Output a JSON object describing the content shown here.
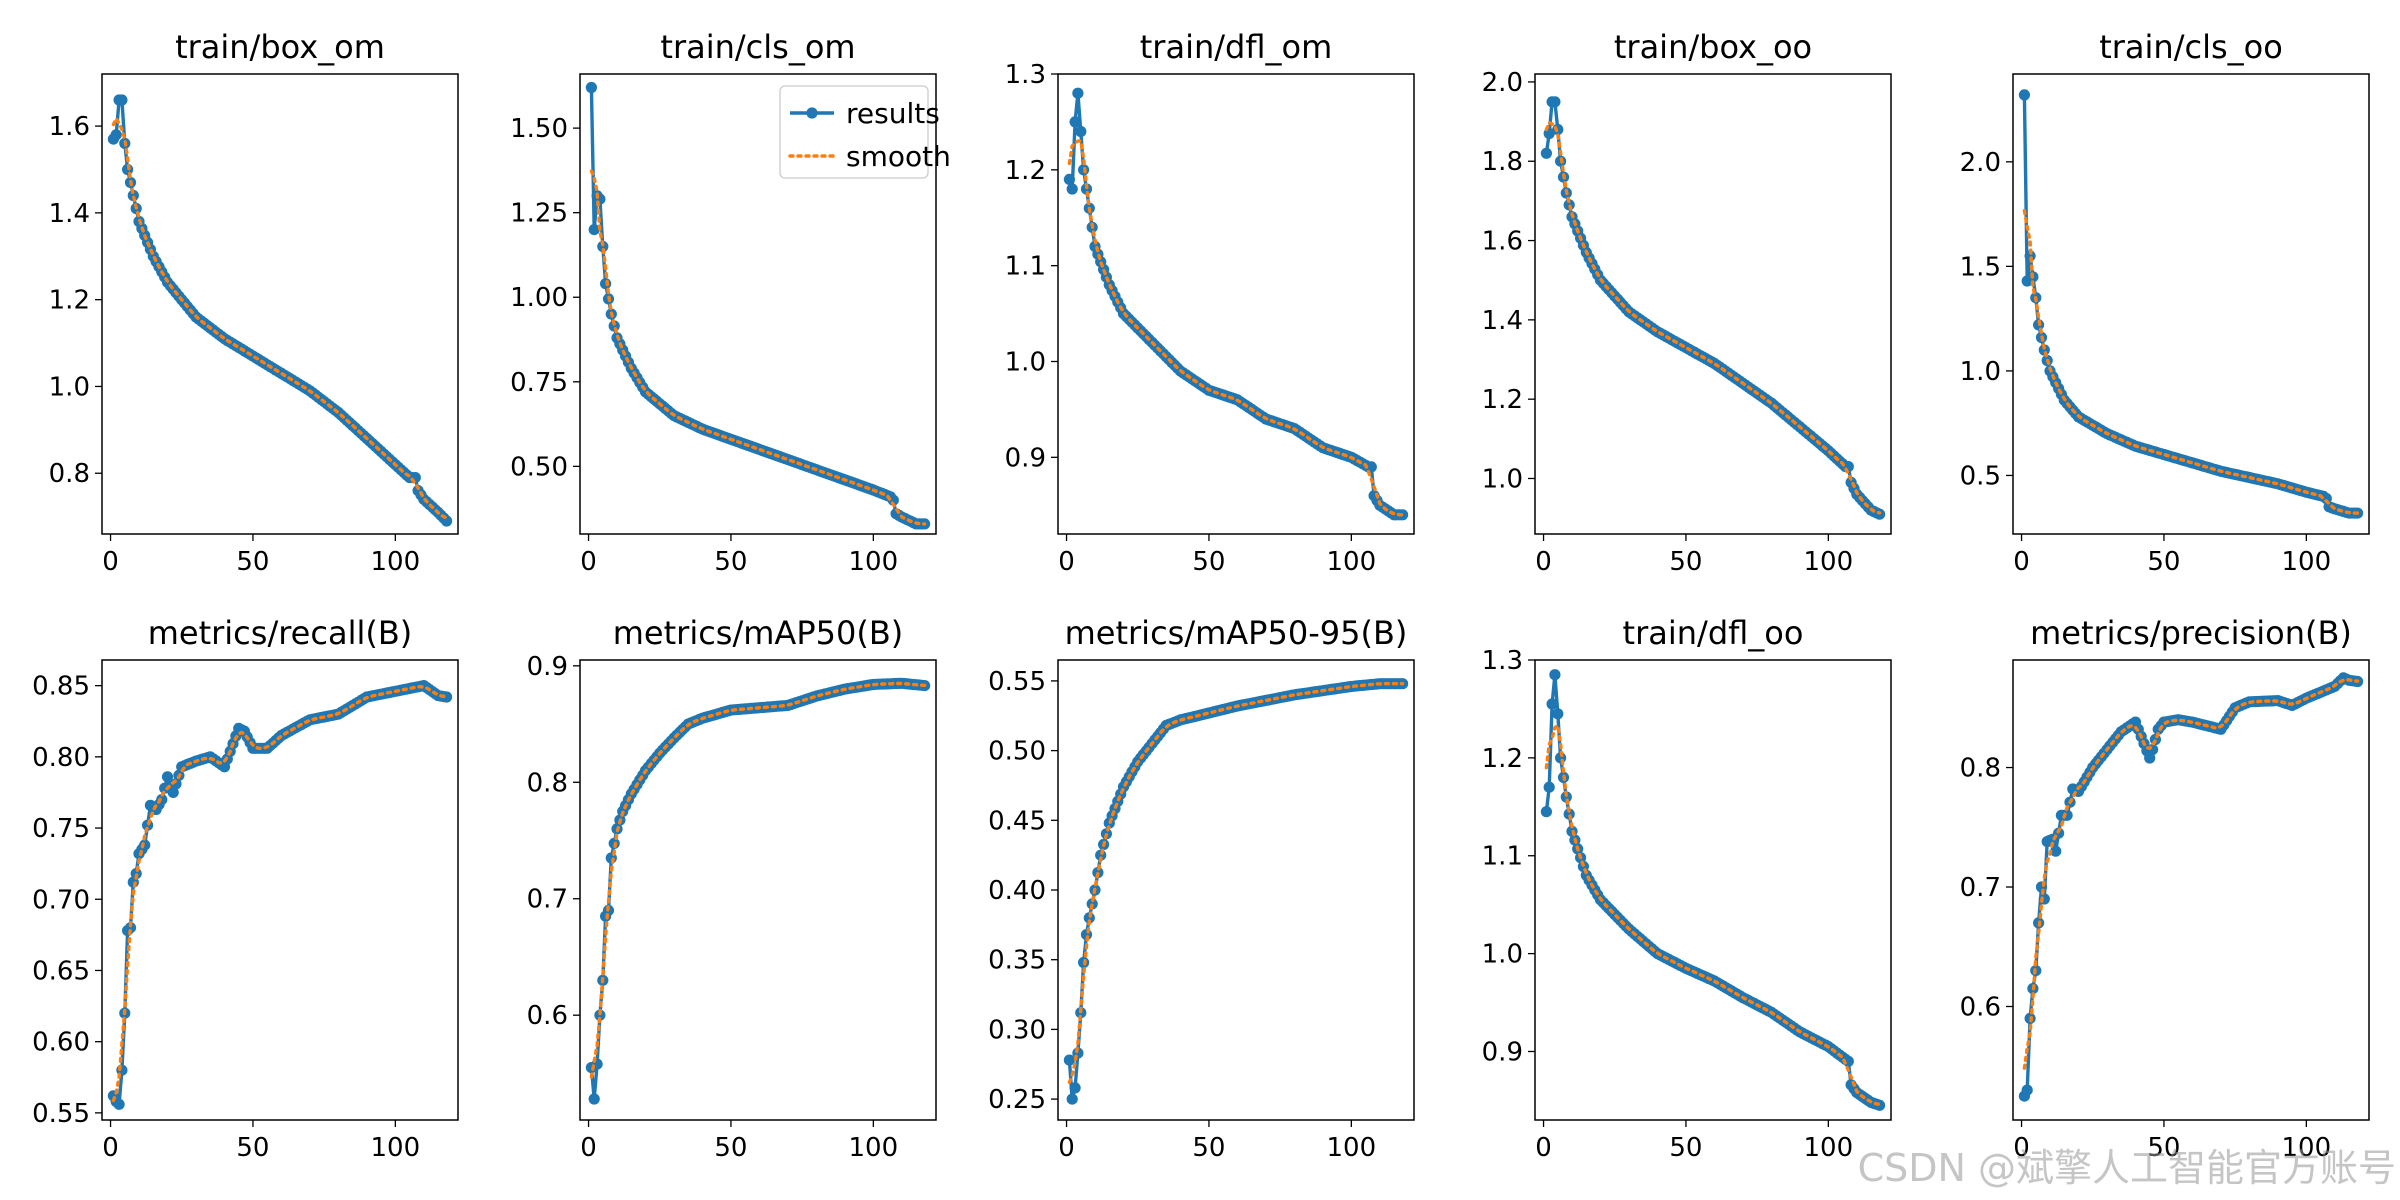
{
  "colors": {
    "results": "#1f77b4",
    "smooth": "#ff7f0e"
  },
  "legend": {
    "location": "top-right of panel 2",
    "results_label": "results",
    "smooth_label": "smooth"
  },
  "watermark": "CSDN @斌擎人工智能官方账号",
  "chart_data": [
    {
      "type": "line",
      "title": "train/box_om",
      "xlim": [
        -3,
        122
      ],
      "ylim": [
        0.66,
        1.72
      ],
      "xticks": [
        "0",
        "50",
        "100"
      ],
      "yticks": [
        "0.8",
        "1.0",
        "1.2",
        "1.4",
        "1.6"
      ],
      "key_points": [
        [
          1,
          1.57
        ],
        [
          2,
          1.58
        ],
        [
          3,
          1.66
        ],
        [
          4,
          1.66
        ],
        [
          5,
          1.56
        ],
        [
          6,
          1.5
        ],
        [
          8,
          1.44
        ],
        [
          10,
          1.38
        ],
        [
          15,
          1.3
        ],
        [
          20,
          1.24
        ],
        [
          30,
          1.16
        ],
        [
          40,
          1.11
        ],
        [
          50,
          1.07
        ],
        [
          60,
          1.03
        ],
        [
          70,
          0.99
        ],
        [
          80,
          0.94
        ],
        [
          90,
          0.88
        ],
        [
          100,
          0.82
        ],
        [
          105,
          0.79
        ],
        [
          107,
          0.79
        ],
        [
          108,
          0.76
        ],
        [
          110,
          0.74
        ],
        [
          115,
          0.71
        ],
        [
          118,
          0.69
        ]
      ],
      "series": [
        {
          "name": "results"
        },
        {
          "name": "smooth"
        }
      ]
    },
    {
      "type": "line",
      "title": "train/cls_om",
      "xlim": [
        -3,
        122
      ],
      "ylim": [
        0.3,
        1.66
      ],
      "xticks": [
        "0",
        "50",
        "100"
      ],
      "yticks": [
        "0.50",
        "0.75",
        "1.00",
        "1.25",
        "1.50"
      ],
      "key_points": [
        [
          1,
          1.62
        ],
        [
          2,
          1.2
        ],
        [
          3,
          1.3
        ],
        [
          4,
          1.29
        ],
        [
          5,
          1.15
        ],
        [
          6,
          1.04
        ],
        [
          8,
          0.95
        ],
        [
          10,
          0.88
        ],
        [
          15,
          0.79
        ],
        [
          20,
          0.72
        ],
        [
          30,
          0.65
        ],
        [
          40,
          0.61
        ],
        [
          50,
          0.58
        ],
        [
          60,
          0.55
        ],
        [
          70,
          0.52
        ],
        [
          80,
          0.49
        ],
        [
          90,
          0.46
        ],
        [
          100,
          0.43
        ],
        [
          106,
          0.41
        ],
        [
          107,
          0.4
        ],
        [
          108,
          0.36
        ],
        [
          110,
          0.35
        ],
        [
          115,
          0.33
        ],
        [
          118,
          0.33
        ]
      ],
      "series": [
        {
          "name": "results"
        },
        {
          "name": "smooth"
        }
      ]
    },
    {
      "type": "line",
      "title": "train/dfl_om",
      "xlim": [
        -3,
        122
      ],
      "ylim": [
        0.82,
        1.3
      ],
      "xticks": [
        "0",
        "50",
        "100"
      ],
      "yticks": [
        "0.9",
        "1.0",
        "1.1",
        "1.2",
        "1.3"
      ],
      "key_points": [
        [
          1,
          1.19
        ],
        [
          2,
          1.18
        ],
        [
          3,
          1.25
        ],
        [
          4,
          1.28
        ],
        [
          5,
          1.24
        ],
        [
          6,
          1.2
        ],
        [
          8,
          1.16
        ],
        [
          10,
          1.12
        ],
        [
          15,
          1.08
        ],
        [
          20,
          1.05
        ],
        [
          30,
          1.02
        ],
        [
          40,
          0.99
        ],
        [
          50,
          0.97
        ],
        [
          60,
          0.96
        ],
        [
          70,
          0.94
        ],
        [
          80,
          0.93
        ],
        [
          90,
          0.91
        ],
        [
          100,
          0.9
        ],
        [
          106,
          0.89
        ],
        [
          107,
          0.89
        ],
        [
          108,
          0.86
        ],
        [
          110,
          0.85
        ],
        [
          115,
          0.84
        ],
        [
          118,
          0.84
        ]
      ],
      "series": [
        {
          "name": "results"
        },
        {
          "name": "smooth"
        }
      ]
    },
    {
      "type": "line",
      "title": "train/box_oo",
      "xlim": [
        -3,
        122
      ],
      "ylim": [
        0.86,
        2.02
      ],
      "xticks": [
        "0",
        "50",
        "100"
      ],
      "yticks": [
        "1.0",
        "1.2",
        "1.4",
        "1.6",
        "1.8",
        "2.0"
      ],
      "key_points": [
        [
          1,
          1.82
        ],
        [
          2,
          1.87
        ],
        [
          3,
          1.95
        ],
        [
          4,
          1.95
        ],
        [
          5,
          1.88
        ],
        [
          6,
          1.8
        ],
        [
          8,
          1.72
        ],
        [
          10,
          1.66
        ],
        [
          15,
          1.57
        ],
        [
          20,
          1.5
        ],
        [
          30,
          1.42
        ],
        [
          40,
          1.37
        ],
        [
          50,
          1.33
        ],
        [
          60,
          1.29
        ],
        [
          70,
          1.24
        ],
        [
          80,
          1.19
        ],
        [
          90,
          1.13
        ],
        [
          100,
          1.07
        ],
        [
          106,
          1.03
        ],
        [
          107,
          1.03
        ],
        [
          108,
          0.99
        ],
        [
          110,
          0.96
        ],
        [
          115,
          0.92
        ],
        [
          118,
          0.91
        ]
      ],
      "series": [
        {
          "name": "results"
        },
        {
          "name": "smooth"
        }
      ]
    },
    {
      "type": "line",
      "title": "train/cls_oo",
      "xlim": [
        -3,
        122
      ],
      "ylim": [
        0.22,
        2.42
      ],
      "xticks": [
        "0",
        "50",
        "100"
      ],
      "yticks": [
        "0.5",
        "1.0",
        "1.5",
        "2.0"
      ],
      "key_points": [
        [
          1,
          2.32
        ],
        [
          2,
          1.43
        ],
        [
          3,
          1.55
        ],
        [
          4,
          1.45
        ],
        [
          5,
          1.35
        ],
        [
          6,
          1.22
        ],
        [
          8,
          1.1
        ],
        [
          10,
          1.0
        ],
        [
          15,
          0.86
        ],
        [
          20,
          0.78
        ],
        [
          30,
          0.7
        ],
        [
          40,
          0.64
        ],
        [
          50,
          0.6
        ],
        [
          60,
          0.56
        ],
        [
          70,
          0.52
        ],
        [
          80,
          0.49
        ],
        [
          90,
          0.46
        ],
        [
          100,
          0.42
        ],
        [
          106,
          0.4
        ],
        [
          107,
          0.39
        ],
        [
          108,
          0.35
        ],
        [
          110,
          0.34
        ],
        [
          115,
          0.32
        ],
        [
          118,
          0.32
        ]
      ],
      "series": [
        {
          "name": "results"
        },
        {
          "name": "smooth"
        }
      ]
    },
    {
      "type": "line",
      "title": "metrics/recall(B)",
      "xlim": [
        -3,
        122
      ],
      "ylim": [
        0.545,
        0.868
      ],
      "xticks": [
        "0",
        "50",
        "100"
      ],
      "yticks": [
        "0.55",
        "0.60",
        "0.65",
        "0.70",
        "0.75",
        "0.80",
        "0.85"
      ],
      "key_points": [
        [
          1,
          0.562
        ],
        [
          2,
          0.558
        ],
        [
          3,
          0.556
        ],
        [
          4,
          0.58
        ],
        [
          5,
          0.62
        ],
        [
          6,
          0.678
        ],
        [
          7,
          0.68
        ],
        [
          8,
          0.712
        ],
        [
          9,
          0.718
        ],
        [
          10,
          0.732
        ],
        [
          12,
          0.738
        ],
        [
          14,
          0.766
        ],
        [
          16,
          0.763
        ],
        [
          18,
          0.77
        ],
        [
          20,
          0.786
        ],
        [
          22,
          0.775
        ],
        [
          25,
          0.793
        ],
        [
          30,
          0.797
        ],
        [
          35,
          0.8
        ],
        [
          40,
          0.793
        ],
        [
          45,
          0.82
        ],
        [
          47,
          0.818
        ],
        [
          50,
          0.806
        ],
        [
          55,
          0.806
        ],
        [
          60,
          0.815
        ],
        [
          70,
          0.826
        ],
        [
          80,
          0.83
        ],
        [
          90,
          0.842
        ],
        [
          100,
          0.846
        ],
        [
          110,
          0.85
        ],
        [
          115,
          0.843
        ],
        [
          118,
          0.842
        ]
      ],
      "series": [
        {
          "name": "results"
        },
        {
          "name": "smooth"
        }
      ]
    },
    {
      "type": "line",
      "title": "metrics/mAP50(B)",
      "xlim": [
        -3,
        122
      ],
      "ylim": [
        0.51,
        0.905
      ],
      "xticks": [
        "0",
        "50",
        "100"
      ],
      "yticks": [
        "0.6",
        "0.7",
        "0.8",
        "0.9"
      ],
      "key_points": [
        [
          1,
          0.555
        ],
        [
          2,
          0.528
        ],
        [
          3,
          0.558
        ],
        [
          4,
          0.6
        ],
        [
          5,
          0.63
        ],
        [
          6,
          0.685
        ],
        [
          7,
          0.69
        ],
        [
          8,
          0.735
        ],
        [
          10,
          0.76
        ],
        [
          12,
          0.775
        ],
        [
          15,
          0.79
        ],
        [
          20,
          0.81
        ],
        [
          25,
          0.825
        ],
        [
          30,
          0.838
        ],
        [
          35,
          0.85
        ],
        [
          40,
          0.855
        ],
        [
          50,
          0.862
        ],
        [
          60,
          0.864
        ],
        [
          70,
          0.866
        ],
        [
          80,
          0.874
        ],
        [
          90,
          0.88
        ],
        [
          100,
          0.884
        ],
        [
          110,
          0.885
        ],
        [
          118,
          0.883
        ]
      ],
      "series": [
        {
          "name": "results"
        },
        {
          "name": "smooth"
        }
      ]
    },
    {
      "type": "line",
      "title": "metrics/mAP50-95(B)",
      "xlim": [
        -3,
        122
      ],
      "ylim": [
        0.235,
        0.565
      ],
      "xticks": [
        "0",
        "50",
        "100"
      ],
      "yticks": [
        "0.25",
        "0.30",
        "0.35",
        "0.40",
        "0.45",
        "0.50",
        "0.55"
      ],
      "key_points": [
        [
          1,
          0.278
        ],
        [
          2,
          0.25
        ],
        [
          3,
          0.258
        ],
        [
          4,
          0.283
        ],
        [
          5,
          0.312
        ],
        [
          6,
          0.348
        ],
        [
          7,
          0.368
        ],
        [
          8,
          0.38
        ],
        [
          10,
          0.4
        ],
        [
          12,
          0.425
        ],
        [
          15,
          0.448
        ],
        [
          20,
          0.474
        ],
        [
          25,
          0.492
        ],
        [
          30,
          0.505
        ],
        [
          35,
          0.518
        ],
        [
          40,
          0.522
        ],
        [
          50,
          0.527
        ],
        [
          60,
          0.532
        ],
        [
          70,
          0.536
        ],
        [
          80,
          0.54
        ],
        [
          90,
          0.543
        ],
        [
          100,
          0.546
        ],
        [
          110,
          0.548
        ],
        [
          118,
          0.548
        ]
      ],
      "series": [
        {
          "name": "results"
        },
        {
          "name": "smooth"
        }
      ]
    },
    {
      "type": "line",
      "title": "train/dfl_oo",
      "xlim": [
        -3,
        122
      ],
      "ylim": [
        0.83,
        1.3
      ],
      "xticks": [
        "0",
        "50",
        "100"
      ],
      "yticks": [
        "0.9",
        "1.0",
        "1.1",
        "1.2",
        "1.3"
      ],
      "key_points": [
        [
          1,
          1.145
        ],
        [
          2,
          1.17
        ],
        [
          3,
          1.255
        ],
        [
          4,
          1.285
        ],
        [
          5,
          1.245
        ],
        [
          6,
          1.2
        ],
        [
          8,
          1.16
        ],
        [
          10,
          1.125
        ],
        [
          15,
          1.08
        ],
        [
          20,
          1.055
        ],
        [
          30,
          1.025
        ],
        [
          40,
          1.0
        ],
        [
          50,
          0.985
        ],
        [
          60,
          0.972
        ],
        [
          70,
          0.955
        ],
        [
          80,
          0.94
        ],
        [
          90,
          0.92
        ],
        [
          100,
          0.905
        ],
        [
          106,
          0.892
        ],
        [
          107,
          0.89
        ],
        [
          108,
          0.866
        ],
        [
          110,
          0.858
        ],
        [
          115,
          0.848
        ],
        [
          118,
          0.845
        ]
      ],
      "series": [
        {
          "name": "results"
        },
        {
          "name": "smooth"
        }
      ]
    },
    {
      "type": "line",
      "title": "metrics/precision(B)",
      "xlim": [
        -3,
        122
      ],
      "ylim": [
        0.505,
        0.89
      ],
      "xticks": [
        "0",
        "50",
        "100"
      ],
      "yticks": [
        "0.6",
        "0.7",
        "0.8"
      ],
      "key_points": [
        [
          1,
          0.525
        ],
        [
          2,
          0.53
        ],
        [
          3,
          0.59
        ],
        [
          4,
          0.615
        ],
        [
          5,
          0.63
        ],
        [
          6,
          0.67
        ],
        [
          7,
          0.7
        ],
        [
          8,
          0.69
        ],
        [
          9,
          0.738
        ],
        [
          11,
          0.74
        ],
        [
          12,
          0.73
        ],
        [
          14,
          0.76
        ],
        [
          16,
          0.76
        ],
        [
          18,
          0.782
        ],
        [
          20,
          0.78
        ],
        [
          22,
          0.788
        ],
        [
          25,
          0.8
        ],
        [
          30,
          0.815
        ],
        [
          35,
          0.83
        ],
        [
          40,
          0.838
        ],
        [
          43,
          0.82
        ],
        [
          45,
          0.808
        ],
        [
          46,
          0.815
        ],
        [
          48,
          0.832
        ],
        [
          50,
          0.838
        ],
        [
          55,
          0.84
        ],
        [
          60,
          0.838
        ],
        [
          65,
          0.835
        ],
        [
          70,
          0.832
        ],
        [
          75,
          0.85
        ],
        [
          80,
          0.855
        ],
        [
          90,
          0.856
        ],
        [
          95,
          0.852
        ],
        [
          100,
          0.858
        ],
        [
          110,
          0.868
        ],
        [
          113,
          0.875
        ],
        [
          115,
          0.873
        ],
        [
          118,
          0.872
        ]
      ],
      "series": [
        {
          "name": "results"
        },
        {
          "name": "smooth"
        }
      ]
    }
  ]
}
